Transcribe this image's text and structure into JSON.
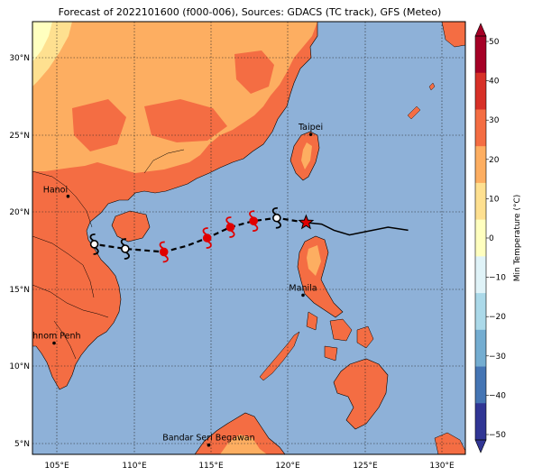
{
  "title": "Forecast of 2022101600 (f000-006), Sources: GDACS (TC track), GFS (Meteo)",
  "map": {
    "lon_range": [
      103.5,
      131.5
    ],
    "lat_range": [
      4.3,
      32.3
    ],
    "lon_ticks": [
      "105°E",
      "110°E",
      "115°E",
      "120°E",
      "125°E",
      "130°E"
    ],
    "lat_ticks": [
      "30°N",
      "25°N",
      "20°N",
      "15°N",
      "10°N",
      "5°N"
    ],
    "ocean_color": "#8eb1d8",
    "land_colors": {
      "warm": "#f46d43",
      "mid": "#fdae61",
      "light": "#fee090",
      "pale": "#ffffbf"
    }
  },
  "cities": [
    {
      "name": "Taipei",
      "lon": 121.5,
      "lat": 25.0
    },
    {
      "name": "Hanoi",
      "lon": 105.8,
      "lat": 21.0
    },
    {
      "name": "Manila",
      "lon": 121.0,
      "lat": 14.6
    },
    {
      "name": "Phnom Penh",
      "lon": 104.9,
      "lat": 11.5
    },
    {
      "name": "Bandar Seri Begawan",
      "lon": 114.9,
      "lat": 4.9
    }
  ],
  "track": {
    "past": [
      [
        127.8,
        18.8
      ],
      [
        126.5,
        19.0
      ],
      [
        125.0,
        18.7
      ],
      [
        124.0,
        18.5
      ],
      [
        123.0,
        18.8
      ],
      [
        122.2,
        19.2
      ],
      [
        121.2,
        19.3
      ]
    ],
    "current": [
      121.2,
      19.3
    ],
    "forecast": [
      [
        121.2,
        19.3
      ],
      [
        119.3,
        19.6
      ],
      [
        117.8,
        19.4
      ],
      [
        116.3,
        19.0
      ],
      [
        114.8,
        18.3
      ],
      [
        113.5,
        17.8
      ],
      [
        112.0,
        17.4
      ],
      [
        109.5,
        17.6
      ],
      [
        107.5,
        17.9
      ]
    ],
    "symbols": [
      {
        "lon": 119.3,
        "lat": 19.6,
        "kind": "depression"
      },
      {
        "lon": 117.8,
        "lat": 19.4,
        "kind": "storm"
      },
      {
        "lon": 116.3,
        "lat": 19.0,
        "kind": "storm"
      },
      {
        "lon": 114.8,
        "lat": 18.3,
        "kind": "storm"
      },
      {
        "lon": 112.0,
        "lat": 17.4,
        "kind": "storm"
      },
      {
        "lon": 109.5,
        "lat": 17.6,
        "kind": "depression"
      },
      {
        "lon": 107.5,
        "lat": 17.9,
        "kind": "depression"
      }
    ]
  },
  "colorbar": {
    "label": "Min Temperature (°C)",
    "ticks": [
      "50",
      "40",
      "30",
      "20",
      "10",
      "0",
      "−10",
      "−20",
      "−30",
      "−40",
      "−50"
    ],
    "colors": [
      "#a50026",
      "#d73027",
      "#f46d43",
      "#fdae61",
      "#fee090",
      "#ffffbf",
      "#e0f3f8",
      "#abd9e9",
      "#74add1",
      "#4575b4",
      "#313695"
    ]
  }
}
